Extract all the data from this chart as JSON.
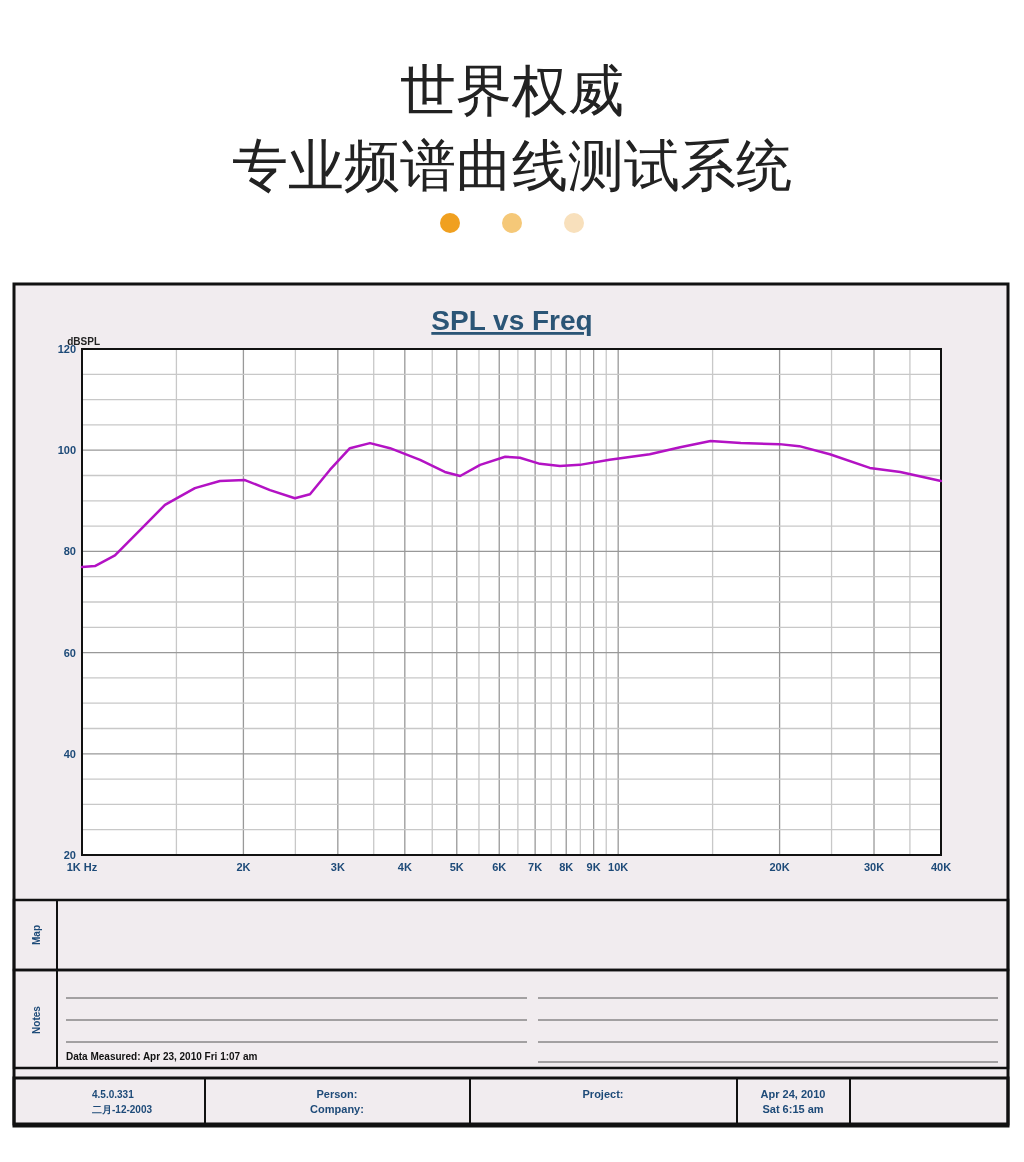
{
  "chart_data": {
    "type": "line",
    "title": "SPL vs Freq",
    "ylabel": "dBSPL",
    "annotations": [
      "世界权威",
      "专业频谱曲线测试系统",
      "Map",
      "Notes",
      "Data Measured: Apr 23, 2010  Fri  1:07 am",
      "4.5.0.331",
      "二月-12-2003",
      "Person:",
      "Company:",
      "Project:",
      "Apr 24, 2010",
      "Sat  6:15 am"
    ],
    "x": [
      1000,
      1057,
      1152,
      1283,
      1428,
      1624,
      1808,
      2013,
      2242,
      2495,
      2662,
      2899,
      3160,
      3444,
      3754,
      4271,
      4750,
      5073,
      5528,
      6155,
      6558,
      7146,
      7786,
      8481,
      9637,
      11450,
      13050,
      14870,
      16930,
      19980,
      21760,
      24820,
      29460,
      33590,
      40000
    ],
    "series": [
      {
        "color": "#b312c4",
        "values": [
          76.9,
          77.1,
          79.2,
          84.2,
          89.2,
          92.5,
          93.9,
          94.1,
          92.1,
          90.5,
          91.3,
          96.1,
          100.4,
          101.4,
          100.4,
          98.1,
          95.7,
          94.9,
          97.1,
          98.7,
          98.5,
          97.3,
          96.9,
          97.1,
          98.1,
          99.2,
          100.6,
          101.8,
          101.4,
          101.2,
          100.8,
          99.2,
          96.5,
          95.7,
          93.9
        ]
      }
    ],
    "log": "x",
    "xlim": [
      1000,
      40000
    ],
    "ylim": [
      20,
      120
    ],
    "xticks": [
      {
        "value": 1000,
        "label": "1K  Hz"
      },
      {
        "value": 1500,
        "label": null
      },
      {
        "value": 2000,
        "label": "2K"
      },
      {
        "value": 2500,
        "label": null
      },
      {
        "value": 3000,
        "label": "3K"
      },
      {
        "value": 3500,
        "label": null
      },
      {
        "value": 4000,
        "label": "4K"
      },
      {
        "value": 4500,
        "label": null
      },
      {
        "value": 5000,
        "label": "5K"
      },
      {
        "value": 5500,
        "label": null
      },
      {
        "value": 6000,
        "label": "6K"
      },
      {
        "value": 6500,
        "label": null
      },
      {
        "value": 7000,
        "label": "7K"
      },
      {
        "value": 7500,
        "label": null
      },
      {
        "value": 8000,
        "label": "8K"
      },
      {
        "value": 8500,
        "label": null
      },
      {
        "value": 9000,
        "label": "9K"
      },
      {
        "value": 9500,
        "label": null
      },
      {
        "value": 10000,
        "label": "10K"
      },
      {
        "value": 15000,
        "label": null
      },
      {
        "value": 20000,
        "label": "20K"
      },
      {
        "value": 25000,
        "label": null
      },
      {
        "value": 30000,
        "label": "30K"
      },
      {
        "value": 35000,
        "label": null
      },
      {
        "value": 40000,
        "label": "40K"
      }
    ],
    "yticks": [
      20,
      {
        "value": 25,
        "label": null
      },
      {
        "value": 30,
        "label": null
      },
      {
        "value": 35,
        "label": null
      },
      40,
      {
        "value": 45,
        "label": null
      },
      {
        "value": 50,
        "label": null
      },
      {
        "value": 55,
        "label": null
      },
      60,
      {
        "value": 65,
        "label": null
      },
      {
        "value": 70,
        "label": null
      },
      {
        "value": 75,
        "label": null
      },
      80,
      {
        "value": 85,
        "label": null
      },
      {
        "value": 90,
        "label": null
      },
      {
        "value": 95,
        "label": null
      },
      100,
      {
        "value": 105,
        "label": null
      },
      {
        "value": 110,
        "label": null
      },
      {
        "value": 115,
        "label": null
      },
      120
    ],
    "grid": true,
    "marker": "none",
    "line_style": "solid"
  }
}
